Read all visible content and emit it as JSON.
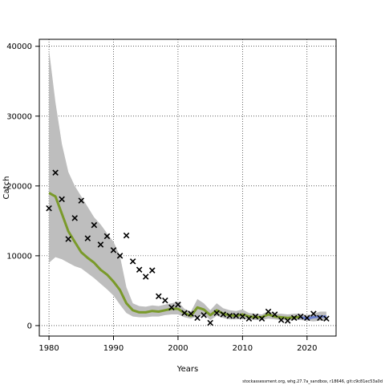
{
  "chart_data": {
    "type": "line",
    "title": "",
    "xlabel": "Years",
    "ylabel": "Catch",
    "footnote": "stockassessment.org, whg.27.7a_sandbox, r18646, git:c9c81ec53a0d",
    "xlim": [
      1978.5,
      2024.5
    ],
    "ylim": [
      -1500,
      41000
    ],
    "xticks": [
      1980,
      1990,
      2000,
      2010,
      2020
    ],
    "yticks": [
      0,
      10000,
      20000,
      30000,
      40000
    ],
    "xtick_labels": [
      "1980",
      "1990",
      "2000",
      "2010",
      "2020"
    ],
    "ytick_labels": [
      "0",
      "10000",
      "20000",
      "30000",
      "40000"
    ],
    "grid": true,
    "colors": {
      "band": "#bebebe",
      "fit_line": "#7a9a2a",
      "forecast_line": "#6a7fd0",
      "observed": "#000000"
    },
    "band": {
      "x": [
        1980,
        1981,
        1982,
        1983,
        1984,
        1985,
        1986,
        1987,
        1988,
        1989,
        1990,
        1991,
        1992,
        1993,
        1994,
        1995,
        1996,
        1997,
        1998,
        1999,
        2000,
        2001,
        2002,
        2003,
        2004,
        2005,
        2006,
        2007,
        2008,
        2009,
        2010,
        2011,
        2012,
        2013,
        2014,
        2015,
        2016,
        2017,
        2018,
        2019,
        2020,
        2021,
        2022,
        2023
      ],
      "lower": [
        9000,
        9800,
        9500,
        9000,
        8500,
        8200,
        7500,
        6800,
        6000,
        5200,
        4300,
        3000,
        1800,
        1300,
        1200,
        1200,
        1300,
        1300,
        1500,
        1600,
        1600,
        1200,
        1000,
        1300,
        1600,
        800,
        1400,
        1100,
        900,
        900,
        1000,
        900,
        800,
        800,
        1000,
        900,
        800,
        700,
        800,
        800,
        700,
        600,
        700,
        700
      ],
      "upper": [
        39500,
        32000,
        26000,
        22000,
        20000,
        18500,
        17000,
        15500,
        14500,
        13200,
        12000,
        10000,
        5500,
        3200,
        2800,
        2700,
        2900,
        2800,
        3000,
        3200,
        3400,
        2400,
        2000,
        3800,
        3200,
        2200,
        3200,
        2500,
        2200,
        2100,
        2300,
        1800,
        1700,
        1600,
        2100,
        1700,
        1700,
        1600,
        1700,
        1700,
        1500,
        1700,
        2000,
        2000
      ]
    },
    "series": [
      {
        "x": [
          1980,
          1981,
          1982,
          1983,
          1984,
          1985,
          1986,
          1987,
          1988,
          1989,
          1990,
          1991,
          1992,
          1993,
          1994,
          1995,
          1996,
          1997,
          1998,
          1999,
          2000,
          2001,
          2002,
          2003,
          2004,
          2005,
          2006,
          2007,
          2008,
          2009,
          2010,
          2011,
          2012,
          2013,
          2014,
          2015,
          2016,
          2017,
          2018,
          2019
        ],
        "values": [
          19000,
          18500,
          16000,
          13500,
          12000,
          10500,
          9700,
          9000,
          8000,
          7300,
          6300,
          5100,
          3200,
          2200,
          1900,
          1900,
          2100,
          2000,
          2200,
          2400,
          2400,
          1800,
          1400,
          2600,
          2300,
          1500,
          2200,
          1700,
          1500,
          1400,
          1600,
          1300,
          1200,
          1200,
          1600,
          1300,
          1200,
          1100,
          1200,
          1200
        ]
      },
      {
        "x": [
          2019,
          2020,
          2021,
          2022,
          2023
        ],
        "values": [
          1200,
          1000,
          1200,
          1300,
          1300
        ]
      }
    ],
    "observed": {
      "x": [
        1980,
        1981,
        1982,
        1983,
        1984,
        1985,
        1986,
        1987,
        1988,
        1989,
        1990,
        1991,
        1992,
        1993,
        1994,
        1995,
        1996,
        1997,
        1998,
        1999,
        2000,
        2001,
        2002,
        2003,
        2004,
        2005,
        2006,
        2007,
        2008,
        2009,
        2010,
        2011,
        2012,
        2013,
        2014,
        2015,
        2016,
        2017,
        2018,
        2019,
        2020,
        2021,
        2022,
        2023
      ],
      "values": [
        16800,
        21900,
        18100,
        12400,
        15400,
        17900,
        12500,
        14400,
        11600,
        12800,
        10800,
        10000,
        12900,
        9200,
        8000,
        7000,
        7900,
        4200,
        3600,
        2600,
        3000,
        1800,
        1700,
        1100,
        1500,
        400,
        1800,
        1600,
        1400,
        1400,
        1300,
        1000,
        1300,
        1000,
        2000,
        1600,
        800,
        700,
        1100,
        1300,
        1100,
        1700,
        1100,
        1000
      ]
    }
  }
}
